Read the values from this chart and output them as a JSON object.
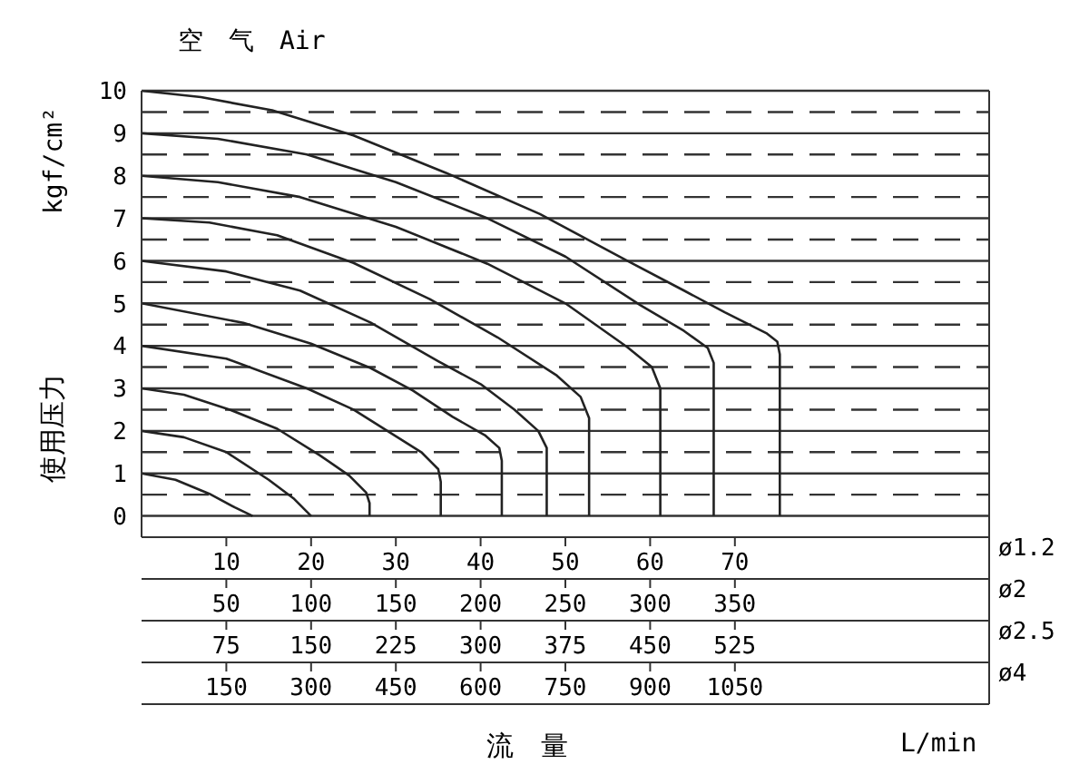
{
  "chart_data": {
    "type": "line",
    "title": "空　气　Air",
    "xlabel": "流　量",
    "ylabel": "使用压力",
    "annotations": [
      "kgf/cm²",
      "L/min",
      "ø1.2",
      "ø2.5",
      "ø4",
      "75",
      "150",
      "225",
      "300",
      "375",
      "450",
      "525",
      "150",
      "300",
      "450",
      "600",
      "750",
      "900",
      "1050"
    ],
    "xlim": [
      0,
      100
    ],
    "xticks": [
      10,
      20,
      30,
      40,
      50,
      60,
      70
    ],
    "x2label": "ø2",
    "x2lim": [
      0,
      500
    ],
    "x2ticks": [
      50,
      100,
      150,
      200,
      250,
      300,
      350
    ],
    "ylim": [
      -0.5,
      10
    ],
    "yticks": [
      0,
      {
        "value": 0.5,
        "label": null
      },
      1,
      {
        "value": 1.5,
        "label": null
      },
      2,
      {
        "value": 2.5,
        "label": null
      },
      3,
      {
        "value": 3.5,
        "label": null
      },
      4,
      {
        "value": 4.5,
        "label": null
      },
      5,
      {
        "value": 5.5,
        "label": null
      },
      6,
      {
        "value": 6.5,
        "label": null
      },
      7,
      {
        "value": 7.5,
        "label": null
      },
      8,
      {
        "value": 8.5,
        "label": null
      },
      9,
      {
        "value": 9.5,
        "label": null
      },
      10
    ],
    "grid": "y",
    "marker": "none",
    "line_style": "solid",
    "series": [
      {
        "color": "#222222",
        "x": [
          0,
          4,
          8,
          11,
          13.1
        ],
        "values": [
          1,
          0.85,
          0.52,
          0.2,
          0
        ]
      },
      {
        "color": "#222222",
        "x": [
          0,
          5,
          10,
          15,
          18,
          20
        ],
        "values": [
          2,
          1.85,
          1.5,
          0.85,
          0.4,
          0
        ]
      },
      {
        "color": "#222222",
        "x": [
          0,
          5,
          10.4,
          16,
          21,
          24.5,
          26.5,
          26.9,
          26.9
        ],
        "values": [
          3,
          2.85,
          2.5,
          2.05,
          1.43,
          0.95,
          0.55,
          0.3,
          0
        ]
      },
      {
        "color": "#222222",
        "x": [
          0,
          10,
          19.5,
          25,
          29,
          33,
          35,
          35.3,
          35.3
        ],
        "values": [
          4,
          3.7,
          3.0,
          2.5,
          2.0,
          1.5,
          1.1,
          0.8,
          0
        ]
      },
      {
        "color": "#222222",
        "x": [
          0,
          12,
          20,
          27,
          32,
          36.7,
          40.5,
          42.2,
          42.5,
          42.5
        ],
        "values": [
          5,
          4.54,
          4.05,
          3.48,
          2.95,
          2.33,
          1.9,
          1.6,
          1.3,
          0
        ]
      },
      {
        "color": "#222222",
        "x": [
          0,
          10,
          18.7,
          27,
          35,
          40,
          44,
          46.8,
          47.8,
          47.8
        ],
        "values": [
          6,
          5.75,
          5.3,
          4.55,
          3.64,
          3.1,
          2.5,
          2.0,
          1.6,
          0
        ]
      },
      {
        "color": "#222222",
        "x": [
          0,
          8,
          16,
          25,
          34,
          42,
          49,
          51.8,
          52.8,
          52.8
        ],
        "values": [
          7,
          6.9,
          6.6,
          5.95,
          5.1,
          4.2,
          3.3,
          2.8,
          2.3,
          0
        ]
      },
      {
        "color": "#222222",
        "x": [
          0,
          9,
          18.7,
          30,
          40.8,
          50,
          57.3,
          60.2,
          61.2,
          61.2
        ],
        "values": [
          8,
          7.85,
          7.5,
          6.8,
          5.93,
          5.0,
          3.97,
          3.5,
          3.0,
          0
        ]
      },
      {
        "color": "#222222",
        "x": [
          0,
          9,
          19.5,
          30,
          40.8,
          50,
          58.9,
          64,
          66.8,
          67.5,
          67.5
        ],
        "values": [
          9,
          8.87,
          8.5,
          7.85,
          7.0,
          6.1,
          4.95,
          4.35,
          3.95,
          3.6,
          0
        ]
      },
      {
        "color": "#222222",
        "x": [
          0,
          7,
          15.4,
          25,
          35.9,
          47,
          57.3,
          64,
          68.8,
          73.7,
          75,
          75.3,
          75.3
        ],
        "values": [
          10,
          9.85,
          9.54,
          8.95,
          8.07,
          7.1,
          6.0,
          5.3,
          4.79,
          4.3,
          4.1,
          3.8,
          0
        ]
      }
    ]
  }
}
